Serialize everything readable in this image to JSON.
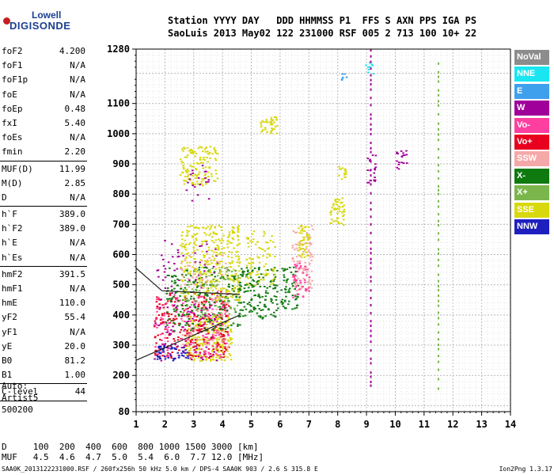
{
  "header": {
    "line1": "Station YYYY DAY   DDD HHMMSS P1  FFS S AXN PPS IGA PS",
    "line2": "SaoLuis 2013 May02 122 231000 RSF 005 2 713 100 10+ 22"
  },
  "logo": {
    "line1": "Lowell",
    "line2": "DIGISONDE"
  },
  "params": [
    {
      "name": "foF2",
      "value": "4.200"
    },
    {
      "name": "foF1",
      "value": "N/A"
    },
    {
      "name": "foF1p",
      "value": "N/A"
    },
    {
      "name": "foE",
      "value": "N/A"
    },
    {
      "name": "foEp",
      "value": "0.48"
    },
    {
      "name": "fxI",
      "value": "5.40"
    },
    {
      "name": "foEs",
      "value": "N/A"
    },
    {
      "name": "fmin",
      "value": "2.20"
    },
    {
      "name": "MUF(D)",
      "value": "11.99"
    },
    {
      "name": "M(D)",
      "value": "2.85"
    },
    {
      "name": "D",
      "value": "N/A"
    },
    {
      "name": "h`F",
      "value": "389.0"
    },
    {
      "name": "h`F2",
      "value": "389.0"
    },
    {
      "name": "h`E",
      "value": "N/A"
    },
    {
      "name": "h`Es",
      "value": "N/A"
    },
    {
      "name": "hmF2",
      "value": "391.5"
    },
    {
      "name": "hmF1",
      "value": "N/A"
    },
    {
      "name": "hmE",
      "value": "110.0"
    },
    {
      "name": "yF2",
      "value": "55.4"
    },
    {
      "name": "yF1",
      "value": "N/A"
    },
    {
      "name": "yE",
      "value": "20.0"
    },
    {
      "name": "B0",
      "value": "81.2"
    },
    {
      "name": "B1",
      "value": "1.00"
    },
    {
      "name": "C-level",
      "value": "44"
    }
  ],
  "auto": {
    "line1": "Auto:",
    "line2": "Artist5",
    "line3": "500200"
  },
  "legend": [
    {
      "label": "NoVal",
      "color": "#8c8c8c"
    },
    {
      "label": "NNE",
      "color": "#19e6f0"
    },
    {
      "label": "E",
      "color": "#3fa0ee"
    },
    {
      "label": "W",
      "color": "#a00099"
    },
    {
      "label": "Vo-",
      "color": "#ff3fa0"
    },
    {
      "label": "Vo+",
      "color": "#e8001e"
    },
    {
      "label": "SSW",
      "color": "#f5a8a8"
    },
    {
      "label": "X-",
      "color": "#0f7a10"
    },
    {
      "label": "X+",
      "color": "#7ab64c"
    },
    {
      "label": "SSE",
      "color": "#d8d80e"
    },
    {
      "label": "NNW",
      "color": "#1f1fbf"
    }
  ],
  "conversion": {
    "line1": "D     100  200  400  600  800 1000 1500 3000 [km]",
    "line2": "MUF   4.5  4.6  4.7  5.0  5.4  6.0  7.7 12.0 [MHz]"
  },
  "footer": {
    "left": "SAA0K_2013122231000.RSF / 260fx256h 50 kHz 5.0 km / DPS-4 SAA0K 903 / 2.6 S 315.8 E",
    "right": "Ion2Png 1.3.17"
  },
  "chart_data": {
    "type": "scatter",
    "title": "",
    "xlabel": "",
    "ylabel": "",
    "xlim": [
      1,
      14
    ],
    "ylim": [
      80,
      1280
    ],
    "x_ticks": [
      "1",
      "2",
      "3",
      "4",
      "5",
      "6",
      "7",
      "8",
      "9",
      "10",
      "11",
      "12",
      "13",
      "14"
    ],
    "y_ticks": [
      {
        "value": 80,
        "label": "80"
      },
      {
        "value": 200,
        "label": "200"
      },
      {
        "value": 300,
        "label": "300"
      },
      {
        "value": 400,
        "label": "400"
      },
      {
        "value": 500,
        "label": "500"
      },
      {
        "value": 600,
        "label": "600"
      },
      {
        "value": 700,
        "label": "700"
      },
      {
        "value": 800,
        "label": "800"
      },
      {
        "value": 900,
        "label": "900"
      },
      {
        "value": 1000,
        "label": "1000"
      },
      {
        "value": 1100,
        "label": "1100"
      },
      {
        "value": 1280,
        "label": "1280"
      }
    ],
    "grid": true,
    "trace_lines": [
      {
        "points": [
          [
            1.0,
            250
          ],
          [
            4.6,
            400
          ]
        ]
      },
      {
        "points": [
          [
            1.0,
            555
          ],
          [
            1.9,
            480
          ]
        ]
      },
      {
        "points": [
          [
            1.9,
            480
          ],
          [
            4.6,
            468
          ]
        ]
      }
    ],
    "clusters": [
      {
        "series": "SSE",
        "x": [
          2.7,
          4.3
        ],
        "y": [
          250,
          400
        ],
        "n": 260
      },
      {
        "series": "Vo+",
        "x": [
          1.6,
          4.2
        ],
        "y": [
          260,
          480
        ],
        "n": 260
      },
      {
        "series": "Vo-",
        "x": [
          1.6,
          4.2
        ],
        "y": [
          260,
          470
        ],
        "n": 180
      },
      {
        "series": "W",
        "x": [
          1.6,
          3.8
        ],
        "y": [
          250,
          650
        ],
        "n": 120
      },
      {
        "series": "X-",
        "x": [
          2.0,
          4.6
        ],
        "y": [
          350,
          560
        ],
        "n": 220
      },
      {
        "series": "X+",
        "x": [
          2.6,
          4.6
        ],
        "y": [
          400,
          560
        ],
        "n": 90
      },
      {
        "series": "SSE",
        "x": [
          2.5,
          4.6
        ],
        "y": [
          450,
          700
        ],
        "n": 320
      },
      {
        "series": "SSW",
        "x": [
          2.5,
          4.2
        ],
        "y": [
          300,
          600
        ],
        "n": 90
      },
      {
        "series": "NNW",
        "x": [
          1.6,
          2.8
        ],
        "y": [
          250,
          300
        ],
        "n": 50
      },
      {
        "series": "SSE",
        "x": [
          2.5,
          3.8
        ],
        "y": [
          830,
          960
        ],
        "n": 130
      },
      {
        "series": "W",
        "x": [
          2.7,
          3.5
        ],
        "y": [
          780,
          900
        ],
        "n": 20
      },
      {
        "series": "X-",
        "x": [
          4.5,
          5.9
        ],
        "y": [
          390,
          560
        ],
        "n": 150
      },
      {
        "series": "SSE",
        "x": [
          4.8,
          5.8
        ],
        "y": [
          500,
          680
        ],
        "n": 80
      },
      {
        "series": "SSE",
        "x": [
          5.3,
          5.9
        ],
        "y": [
          1000,
          1060
        ],
        "n": 40
      },
      {
        "series": "X-",
        "x": [
          6.0,
          6.6
        ],
        "y": [
          420,
          560
        ],
        "n": 60
      },
      {
        "series": "SSW",
        "x": [
          6.4,
          7.1
        ],
        "y": [
          480,
          700
        ],
        "n": 90
      },
      {
        "series": "Vo-",
        "x": [
          6.4,
          7.0
        ],
        "y": [
          460,
          580
        ],
        "n": 40
      },
      {
        "series": "SSE",
        "x": [
          6.6,
          7.0
        ],
        "y": [
          590,
          700
        ],
        "n": 50
      },
      {
        "series": "SSE",
        "x": [
          7.7,
          8.2
        ],
        "y": [
          700,
          790
        ],
        "n": 50
      },
      {
        "series": "SSE",
        "x": [
          8.0,
          8.3
        ],
        "y": [
          850,
          900
        ],
        "n": 15
      },
      {
        "series": "W",
        "x": [
          9.0,
          9.3
        ],
        "y": [
          840,
          940
        ],
        "n": 20
      },
      {
        "series": "W",
        "x": [
          10.0,
          10.4
        ],
        "y": [
          880,
          950
        ],
        "n": 20
      },
      {
        "series": "NNE",
        "x": [
          8.9,
          9.3
        ],
        "y": [
          1200,
          1240
        ],
        "n": 10
      },
      {
        "series": "E",
        "x": [
          8.1,
          8.3
        ],
        "y": [
          1170,
          1200
        ],
        "n": 6
      }
    ],
    "vertical_streaks": [
      {
        "x": 9.15,
        "y": [
          170,
          1280
        ],
        "series": "W"
      },
      {
        "x": 11.5,
        "y": [
          160,
          1240
        ],
        "series": "X+"
      }
    ]
  }
}
